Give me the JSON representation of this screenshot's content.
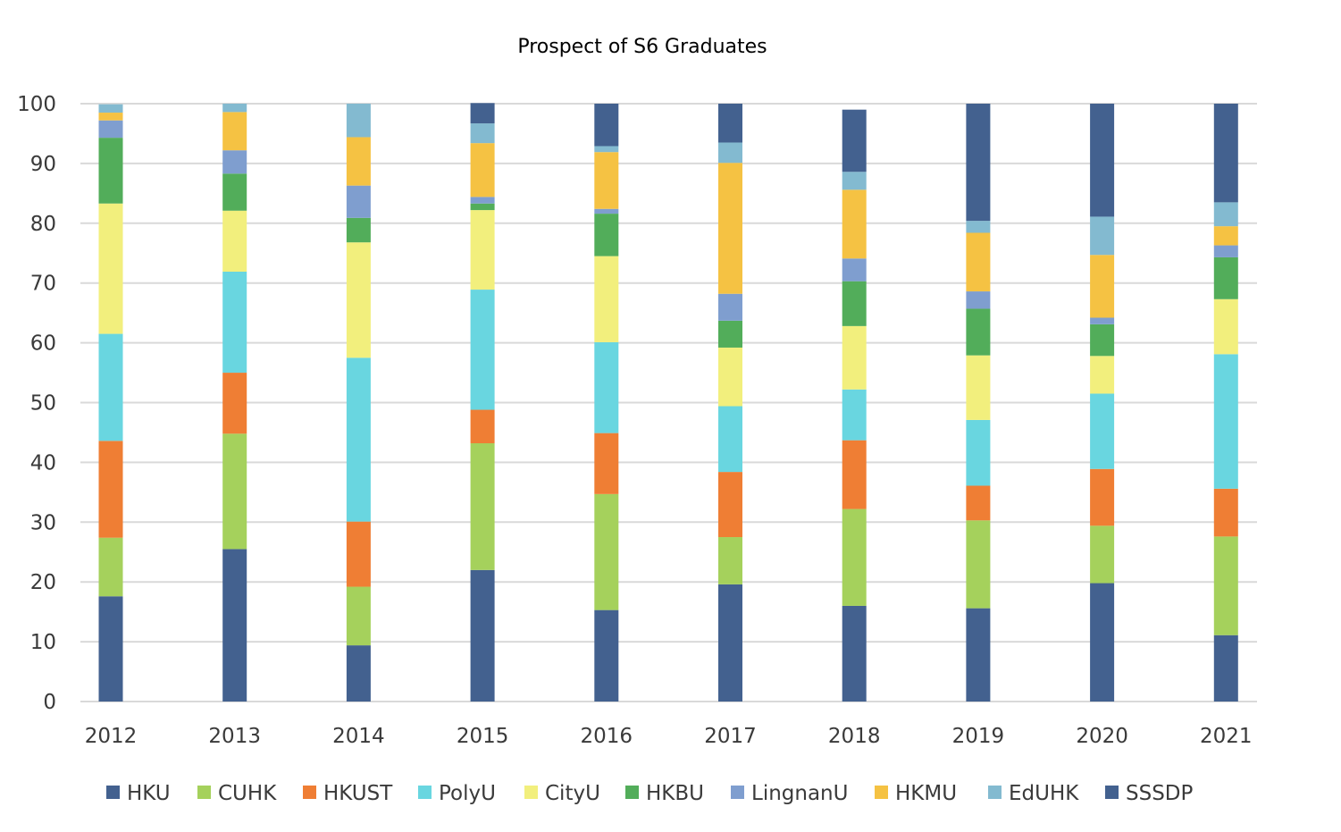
{
  "chart_data": {
    "type": "bar",
    "stacked": true,
    "title": "Prospect of S6 Graduates",
    "xlabel": "",
    "ylabel": "",
    "ylim": [
      0,
      100
    ],
    "yticks": [
      0,
      10,
      20,
      30,
      40,
      50,
      60,
      70,
      80,
      90,
      100
    ],
    "grid": true,
    "legend_position": "bottom",
    "categories": [
      "2012",
      "2013",
      "2014",
      "2015",
      "2016",
      "2017",
      "2018",
      "2019",
      "2020",
      "2021"
    ],
    "series": [
      {
        "name": "HKU",
        "color": "#43618f",
        "values": [
          17.6,
          25.5,
          9.4,
          22.0,
          15.3,
          19.6,
          16.0,
          15.6,
          19.8,
          11.1
        ]
      },
      {
        "name": "CUHK",
        "color": "#a5d15c",
        "values": [
          9.8,
          19.3,
          9.8,
          21.2,
          19.4,
          7.9,
          16.2,
          14.7,
          9.6,
          16.5
        ]
      },
      {
        "name": "HKUST",
        "color": "#ef7e34",
        "values": [
          16.2,
          10.2,
          10.9,
          5.6,
          10.2,
          10.9,
          11.5,
          5.8,
          9.5,
          8.0
        ]
      },
      {
        "name": "PolyU",
        "color": "#69d6e0",
        "values": [
          17.9,
          16.9,
          27.4,
          20.1,
          15.2,
          11.0,
          8.5,
          11.0,
          12.6,
          22.5
        ]
      },
      {
        "name": "CityU",
        "color": "#f2ef7d",
        "values": [
          21.8,
          10.2,
          19.3,
          13.3,
          14.4,
          9.8,
          10.6,
          10.8,
          6.3,
          9.2
        ]
      },
      {
        "name": "HKBU",
        "color": "#52ad5a",
        "values": [
          11.0,
          6.2,
          4.1,
          1.1,
          7.1,
          4.5,
          7.5,
          7.8,
          5.3,
          7.0
        ]
      },
      {
        "name": "LingnanU",
        "color": "#7f9ecf",
        "values": [
          2.9,
          3.9,
          5.4,
          1.1,
          0.8,
          4.5,
          3.8,
          2.9,
          1.1,
          2.0
        ]
      },
      {
        "name": "HKMU",
        "color": "#f5c243",
        "values": [
          1.3,
          6.4,
          8.1,
          9.0,
          9.5,
          21.9,
          11.5,
          9.8,
          10.5,
          3.2
        ]
      },
      {
        "name": "EdUHK",
        "color": "#83bad0",
        "values": [
          1.4,
          1.4,
          5.6,
          3.3,
          1.0,
          3.4,
          3.0,
          2.0,
          6.4,
          4.0
        ]
      },
      {
        "name": "SSSDP",
        "color": "#43618f",
        "values": [
          0.0,
          0.0,
          0.0,
          3.4,
          7.1,
          6.5,
          10.4,
          19.6,
          18.9,
          16.5
        ]
      }
    ]
  }
}
